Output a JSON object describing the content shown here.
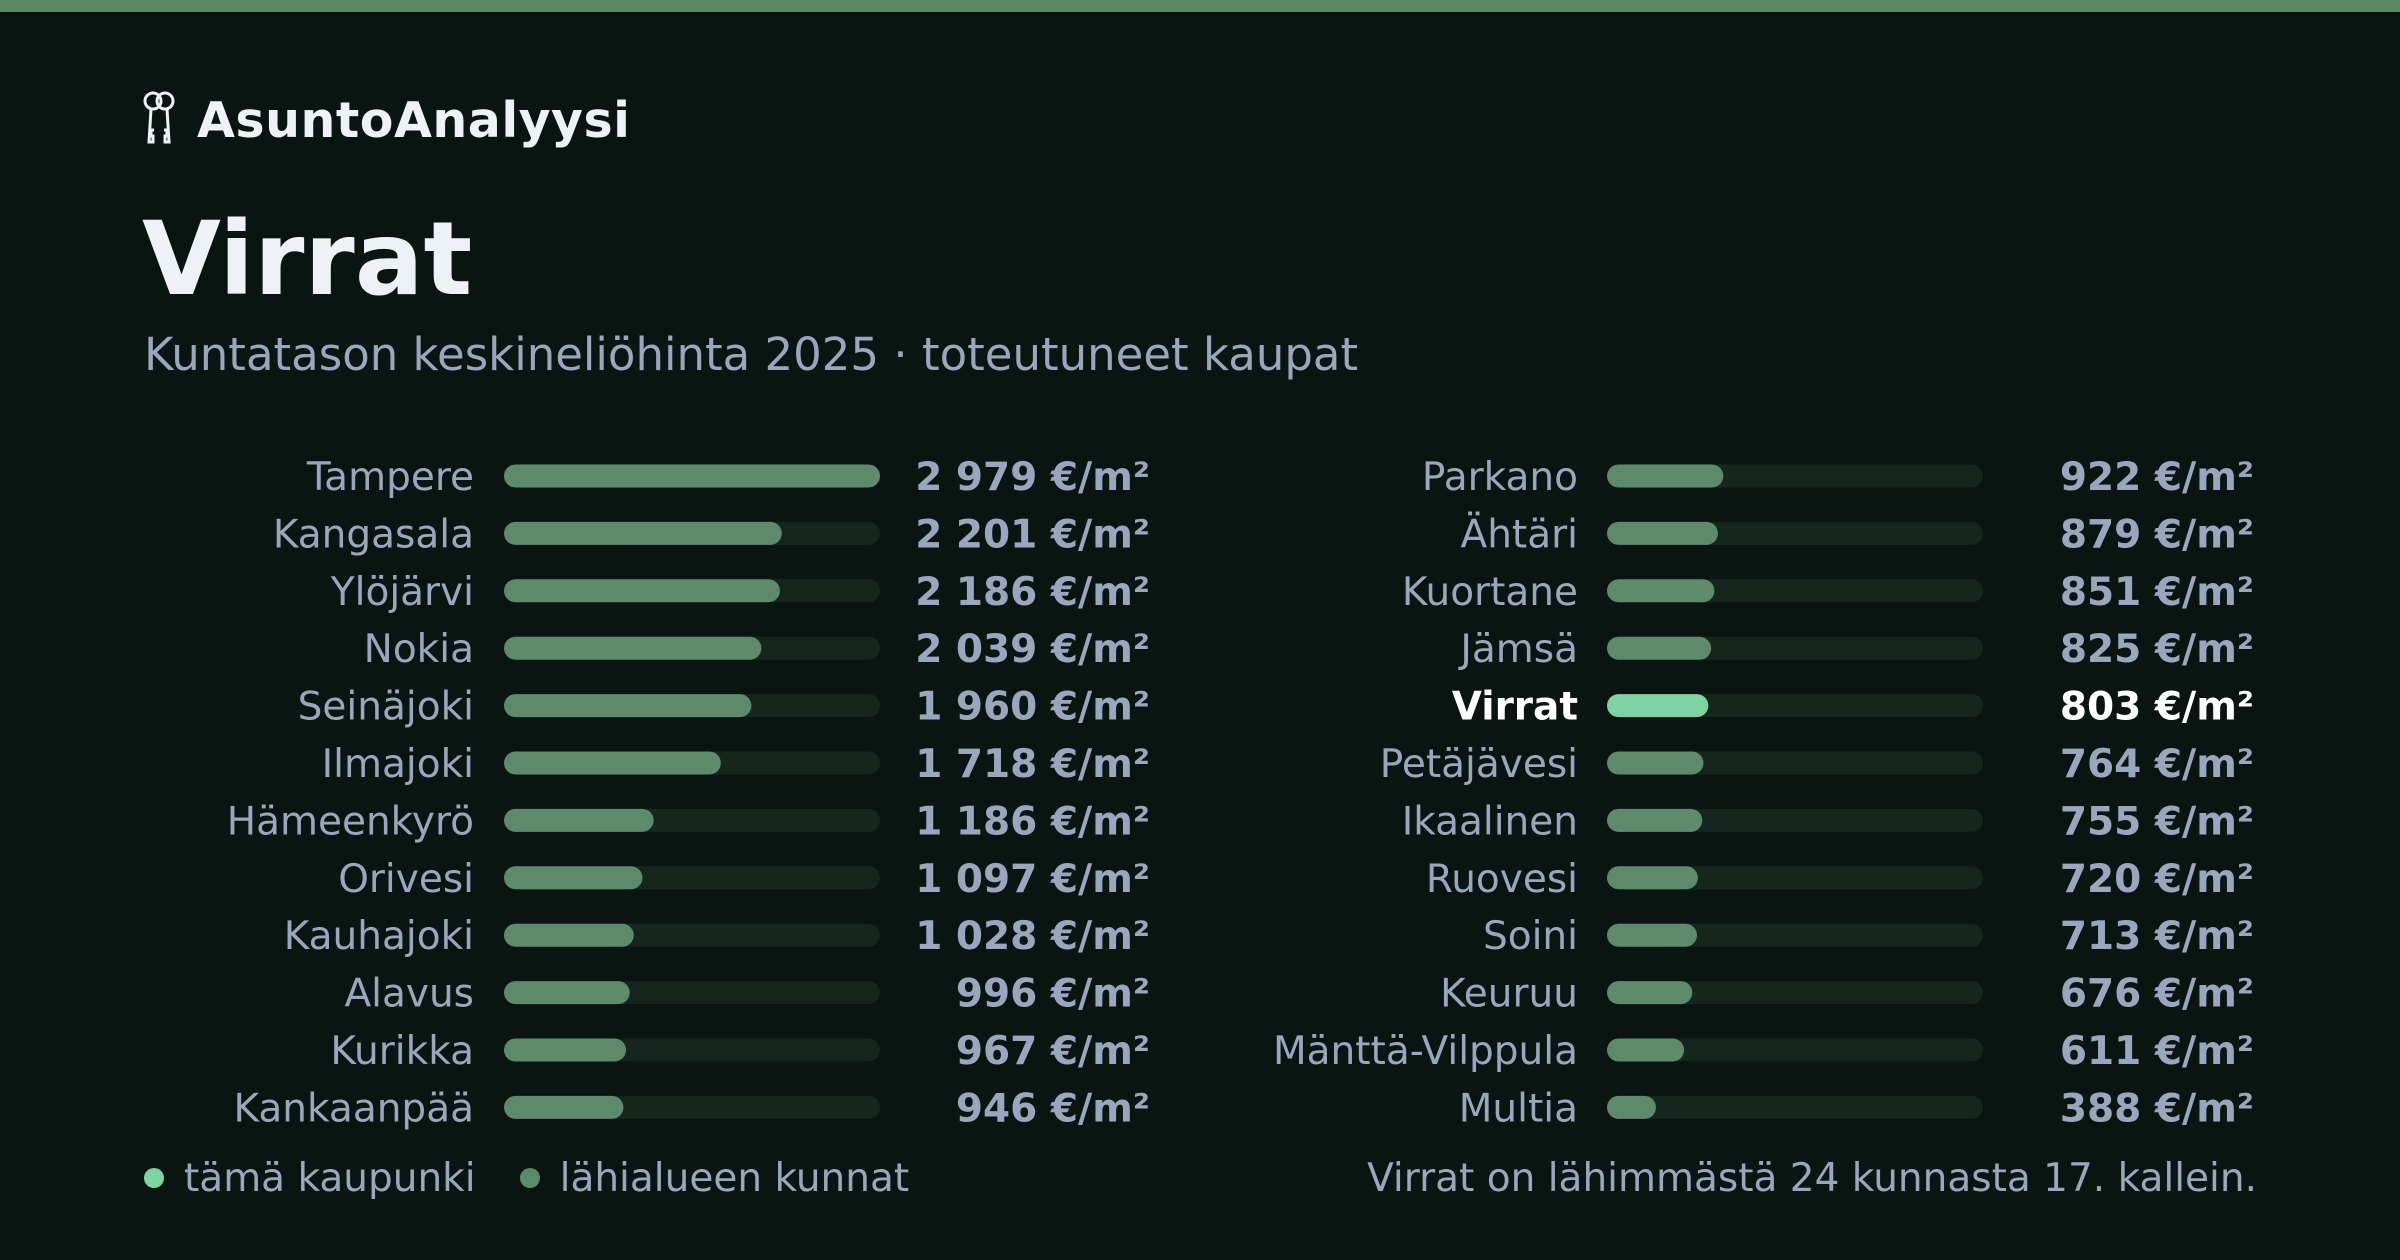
{
  "brand": {
    "name": "AsuntoAnalyysi",
    "icon": "keys-icon"
  },
  "title": "Virrat",
  "subtitle": "Kuntatason keskineliöhinta 2025 · toteutuneet kaupat",
  "colors": {
    "background": "#0a1512",
    "accent_bar": "#5a8b62",
    "bar_fill": "#5e8a6c",
    "bar_highlight": "#7fd3a0",
    "bar_track": "#16261f",
    "label": "#9aa6bd",
    "label_highlight": "#ffffff"
  },
  "chart_data": {
    "type": "bar",
    "orientation": "horizontal",
    "unit": "€/m²",
    "xlim": [
      0,
      2979
    ],
    "highlight": "Virrat",
    "columns": [
      {
        "categories": [
          "Tampere",
          "Kangasala",
          "Ylöjärvi",
          "Nokia",
          "Seinäjoki",
          "Ilmajoki",
          "Hämeenkyrö",
          "Orivesi",
          "Kauhajoki",
          "Alavus",
          "Kurikka",
          "Kankaanpää"
        ],
        "values": [
          2979,
          2201,
          2186,
          2039,
          1960,
          1718,
          1186,
          1097,
          1028,
          996,
          967,
          946
        ],
        "value_labels": [
          "2 979 €/m²",
          "2 201 €/m²",
          "2 186 €/m²",
          "2 039 €/m²",
          "1 960 €/m²",
          "1 718 €/m²",
          "1 186 €/m²",
          "1 097 €/m²",
          "1 028 €/m²",
          "996 €/m²",
          "967 €/m²",
          "946 €/m²"
        ]
      },
      {
        "categories": [
          "Parkano",
          "Ähtäri",
          "Kuortane",
          "Jämsä",
          "Virrat",
          "Petäjävesi",
          "Ikaalinen",
          "Ruovesi",
          "Soini",
          "Keuruu",
          "Mänttä-Vilppula",
          "Multia"
        ],
        "values": [
          922,
          879,
          851,
          825,
          803,
          764,
          755,
          720,
          713,
          676,
          611,
          388
        ],
        "value_labels": [
          "922 €/m²",
          "879 €/m²",
          "851 €/m²",
          "825 €/m²",
          "803 €/m²",
          "764 €/m²",
          "755 €/m²",
          "720 €/m²",
          "713 €/m²",
          "676 €/m²",
          "611 €/m²",
          "388 €/m²"
        ]
      }
    ]
  },
  "legend": {
    "this_city": "tämä kaupunki",
    "nearby": "lähialueen kunnat"
  },
  "footnote": "Virrat on lähimmästä 24 kunnasta 17. kallein."
}
